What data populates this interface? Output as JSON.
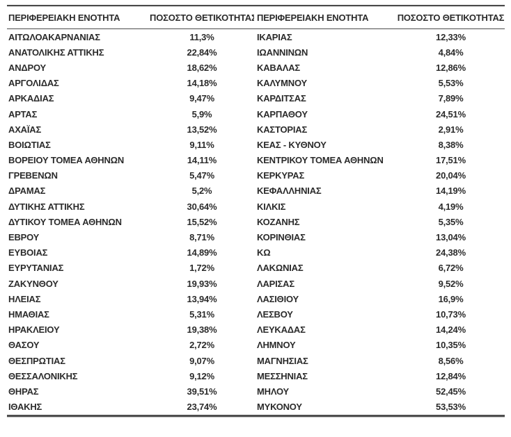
{
  "table": {
    "headers": [
      "ΠΕΡΙΦΕΡΕΙΑΚΗ ΕΝΟΤΗΤΑ",
      "ΠΟΣΟΣΤΟ ΘΕΤΙΚΟΤΗΤΑΣ",
      "ΠΕΡΙΦΕΡΕΙΑΚΗ ΕΝΟΤΗΤΑ",
      "ΠΟΣΟΣΤΟ ΘΕΤΙΚΟΤΗΤΑΣ"
    ],
    "rows": [
      [
        "ΑΙΤΩΛΟΑΚΑΡΝΑΝΙΑΣ",
        "11,3%",
        "ΙΚΑΡΙΑΣ",
        "12,33%"
      ],
      [
        "ΑΝΑΤΟΛΙΚΗΣ ΑΤΤΙΚΗΣ",
        "22,84%",
        "ΙΩΑΝΝΙΝΩΝ",
        "4,84%"
      ],
      [
        "ΑΝΔΡΟΥ",
        "18,62%",
        "ΚΑΒΑΛΑΣ",
        "12,86%"
      ],
      [
        "ΑΡΓΟΛΙΔΑΣ",
        "14,18%",
        "ΚΑΛΥΜΝΟΥ",
        "5,53%"
      ],
      [
        "ΑΡΚΑΔΙΑΣ",
        "9,47%",
        "ΚΑΡΔΙΤΣΑΣ",
        "7,89%"
      ],
      [
        "ΑΡΤΑΣ",
        "5,9%",
        "ΚΑΡΠΑΘΟΥ",
        "24,51%"
      ],
      [
        "ΑΧΑΪΑΣ",
        "13,52%",
        "ΚΑΣΤΟΡΙΑΣ",
        "2,91%"
      ],
      [
        "ΒΟΙΩΤΙΑΣ",
        "9,11%",
        "ΚΕΑΣ - ΚΥΘΝΟΥ",
        "8,38%"
      ],
      [
        "ΒΟΡΕΙΟΥ ΤΟΜΕΑ ΑΘΗΝΩΝ",
        "14,11%",
        "ΚΕΝΤΡΙΚΟΥ ΤΟΜΕΑ ΑΘΗΝΩΝ",
        "17,51%"
      ],
      [
        "ΓΡΕΒΕΝΩΝ",
        "5,47%",
        "ΚΕΡΚΥΡΑΣ",
        "20,04%"
      ],
      [
        "ΔΡΑΜΑΣ",
        "5,2%",
        "ΚΕΦΑΛΛΗΝΙΑΣ",
        "14,19%"
      ],
      [
        "ΔΥΤΙΚΗΣ ΑΤΤΙΚΗΣ",
        "30,64%",
        "ΚΙΛΚΙΣ",
        "4,19%"
      ],
      [
        "ΔΥΤΙΚΟΥ ΤΟΜΕΑ ΑΘΗΝΩΝ",
        "15,52%",
        "ΚΟΖΑΝΗΣ",
        "5,35%"
      ],
      [
        "ΕΒΡΟΥ",
        "8,71%",
        "ΚΟΡΙΝΘΙΑΣ",
        "13,04%"
      ],
      [
        "ΕΥΒΟΙΑΣ",
        "14,89%",
        "ΚΩ",
        "24,38%"
      ],
      [
        "ΕΥΡΥΤΑΝΙΑΣ",
        "1,72%",
        "ΛΑΚΩΝΙΑΣ",
        "6,72%"
      ],
      [
        "ΖΑΚΥΝΘΟΥ",
        "19,93%",
        "ΛΑΡΙΣΑΣ",
        "9,52%"
      ],
      [
        "ΗΛΕΙΑΣ",
        "13,94%",
        "ΛΑΣΙΘΙΟΥ",
        "16,9%"
      ],
      [
        "ΗΜΑΘΙΑΣ",
        "5,31%",
        "ΛΕΣΒΟΥ",
        "10,73%"
      ],
      [
        "ΗΡΑΚΛΕΙΟΥ",
        "19,38%",
        "ΛΕΥΚΑΔΑΣ",
        "14,24%"
      ],
      [
        "ΘΑΣΟΥ",
        "2,72%",
        "ΛΗΜΝΟΥ",
        "10,35%"
      ],
      [
        "ΘΕΣΠΡΩΤΙΑΣ",
        "9,07%",
        "ΜΑΓΝΗΣΙΑΣ",
        "8,56%"
      ],
      [
        "ΘΕΣΣΑΛΟΝΙΚΗΣ",
        "9,12%",
        "ΜΕΣΣΗΝΙΑΣ",
        "12,84%"
      ],
      [
        "ΘΗΡΑΣ",
        "39,51%",
        "ΜΗΛΟΥ",
        "52,45%"
      ],
      [
        "ΙΘΑΚΗΣ",
        "23,74%",
        "ΜΥΚΟΝΟΥ",
        "53,53%"
      ]
    ]
  },
  "colors": {
    "text": "#2b2b2b",
    "rule": "#4a4a4a",
    "background": "#ffffff"
  }
}
